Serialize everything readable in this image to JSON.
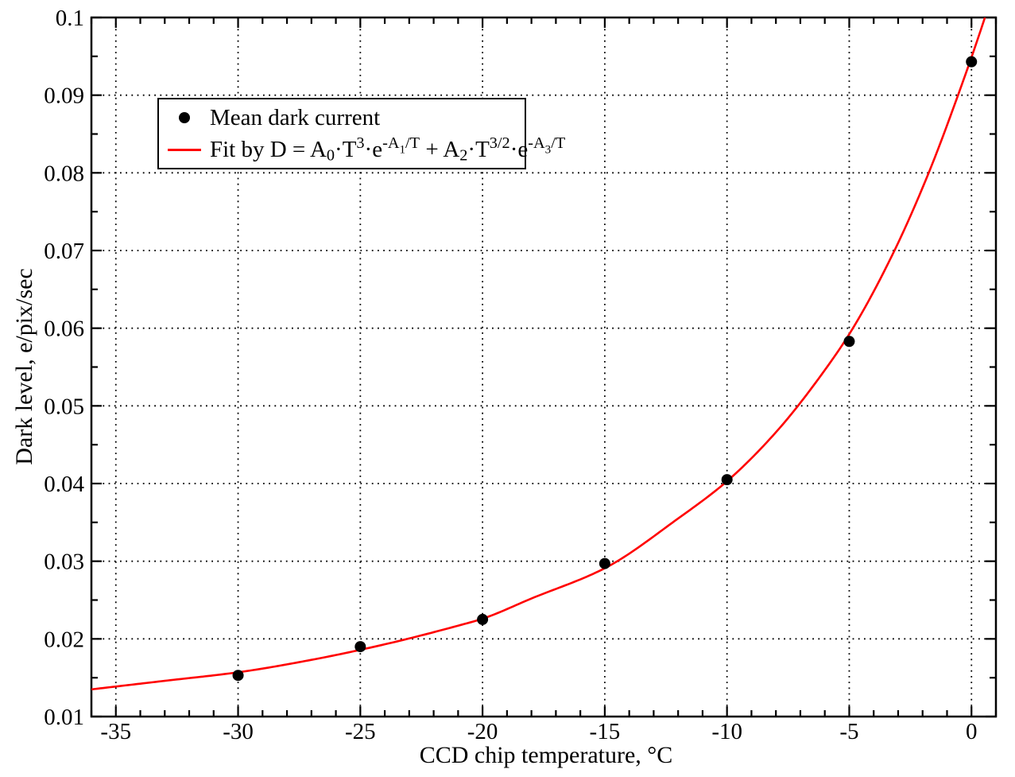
{
  "chart_data": {
    "type": "scatter",
    "title": "",
    "xlabel": "CCD chip temperature, °C",
    "ylabel": "Dark level, e/pix/sec",
    "xlim": [
      -36,
      1
    ],
    "ylim": [
      0.01,
      0.1
    ],
    "x_major_ticks": [
      -35,
      -30,
      -25,
      -20,
      -15,
      -10,
      -5,
      0
    ],
    "x_tick_labels": [
      "-35",
      "-30",
      "-25",
      "-20",
      "-15",
      "-10",
      "-5",
      "0"
    ],
    "x_minor_tick_step": 1,
    "y_major_ticks": [
      0.01,
      0.02,
      0.03,
      0.04,
      0.05,
      0.06,
      0.07,
      0.08,
      0.09,
      0.1
    ],
    "y_tick_labels": [
      "0.01",
      "0.02",
      "0.03",
      "0.04",
      "0.05",
      "0.06",
      "0.07",
      "0.08",
      "0.09",
      "0.1"
    ],
    "y_minor_tick_step": 0.005,
    "grid": "dotted lines at major ticks, both axes",
    "legend_position": "upper-left",
    "series": [
      {
        "name": "Mean dark current",
        "type": "scatter",
        "marker": "filled-circle",
        "color": "#000000",
        "x": [
          -30,
          -25,
          -20,
          -15,
          -10,
          -5,
          0
        ],
        "y": [
          0.0153,
          0.019,
          0.0225,
          0.0297,
          0.0405,
          0.0583,
          0.0943
        ]
      },
      {
        "name": "Fit by D = A0·T^3·e^(-A1/T) + A2·T^(3/2)·e^(-A3/T)",
        "type": "line",
        "color": "#ff0000",
        "x": [
          -36,
          -33,
          -30,
          -27,
          -24,
          -21,
          -20,
          -18,
          -15,
          -12,
          -10,
          -8,
          -6,
          -4.85,
          -3.15,
          -1.75,
          -0.55,
          0.55,
          1
        ],
        "y": [
          0.0135,
          0.0146,
          0.0157,
          0.0173,
          0.0193,
          0.0217,
          0.0226,
          0.0252,
          0.0291,
          0.0355,
          0.0403,
          0.0466,
          0.0546,
          0.06,
          0.07,
          0.08,
          0.09,
          0.1,
          0.1045
        ]
      }
    ],
    "legend": {
      "entries": [
        {
          "label": "Mean dark current",
          "marker": "dot",
          "color": "#000000"
        },
        {
          "label_plain": "Fit by D = A0·T3·e-A1/T + A2·T3/2·e-A3/T",
          "label_segments": [
            {
              "t": "Fit by D = A",
              "s": "n"
            },
            {
              "t": "0",
              "s": "sub"
            },
            {
              "t": "·T",
              "s": "n"
            },
            {
              "t": "3",
              "s": "sup"
            },
            {
              "t": "·e",
              "s": "n"
            },
            {
              "t": "-A",
              "s": "sup"
            },
            {
              "t": "1",
              "s": "supsub"
            },
            {
              "t": "/T",
              "s": "sup"
            },
            {
              "t": " + A",
              "s": "n"
            },
            {
              "t": "2",
              "s": "sub"
            },
            {
              "t": "·T",
              "s": "n"
            },
            {
              "t": "3/2",
              "s": "sup"
            },
            {
              "t": "·e",
              "s": "n"
            },
            {
              "t": "-A",
              "s": "sup"
            },
            {
              "t": "3",
              "s": "supsub"
            },
            {
              "t": "/T",
              "s": "sup"
            }
          ],
          "marker": "line",
          "color": "#ff0000"
        }
      ]
    },
    "colors": {
      "background": "#ffffff",
      "frame": "#000000",
      "grid": "#000000",
      "fit_line": "#ff0000",
      "data_marker": "#000000"
    }
  }
}
